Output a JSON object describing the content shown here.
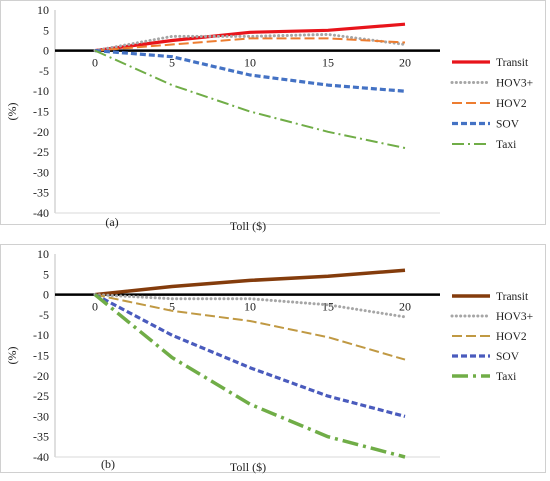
{
  "chart_data": [
    {
      "type": "line",
      "panel_label": "(a)",
      "xlabel": "Toll ($)",
      "ylabel": "(%)",
      "ylim": [
        -40,
        10
      ],
      "xlim": [
        0,
        20
      ],
      "y_ticks": [
        10,
        5,
        0,
        -5,
        -10,
        -15,
        -20,
        -25,
        -30,
        -35,
        -40
      ],
      "x_ticks": [
        0,
        5,
        10,
        15,
        20
      ],
      "grid": false,
      "legend_position": "right",
      "series": [
        {
          "name": "Transit",
          "color": "#e8141b",
          "dash": "solid",
          "x": [
            0,
            5,
            10,
            15,
            20
          ],
          "y": [
            0,
            2.5,
            4.5,
            5.0,
            6.5
          ]
        },
        {
          "name": "HOV3+",
          "color": "#a6a6a6",
          "dash": "dotted",
          "x": [
            0,
            5,
            10,
            15,
            20
          ],
          "y": [
            0,
            3.5,
            3.5,
            4.0,
            1.5
          ]
        },
        {
          "name": "HOV2",
          "color": "#ed7d31",
          "dash": "dashed",
          "x": [
            0,
            5,
            10,
            15,
            20
          ],
          "y": [
            0,
            1.5,
            3.0,
            3.0,
            2.0
          ]
        },
        {
          "name": "SOV",
          "color": "#4472c4",
          "dash": "heavy-dash",
          "x": [
            0,
            5,
            10,
            15,
            20
          ],
          "y": [
            0,
            -1.5,
            -6.0,
            -8.5,
            -10.0
          ]
        },
        {
          "name": "Taxi",
          "color": "#70ad47",
          "dash": "dash-dot",
          "x": [
            0,
            5,
            10,
            15,
            20
          ],
          "y": [
            0,
            -8.5,
            -15.0,
            -20.0,
            -24.0
          ]
        }
      ]
    },
    {
      "type": "line",
      "panel_label": "(b)",
      "xlabel": "Toll ($)",
      "ylabel": "(%)",
      "ylim": [
        -40,
        10
      ],
      "xlim": [
        0,
        20
      ],
      "y_ticks": [
        10,
        5,
        0,
        -5,
        -10,
        -15,
        -20,
        -25,
        -30,
        -35,
        -40
      ],
      "x_ticks": [
        0,
        5,
        10,
        15,
        20
      ],
      "grid": false,
      "legend_position": "right",
      "series": [
        {
          "name": "Transit",
          "color": "#843c0c",
          "dash": "solid",
          "x": [
            0,
            5,
            10,
            15,
            20
          ],
          "y": [
            0,
            2.0,
            3.5,
            4.5,
            6.0
          ]
        },
        {
          "name": "HOV3+",
          "color": "#a6a6a6",
          "dash": "dotted",
          "x": [
            0,
            5,
            10,
            15,
            20
          ],
          "y": [
            0,
            -1.0,
            -1.0,
            -2.5,
            -5.5
          ]
        },
        {
          "name": "HOV2",
          "color": "#c09943",
          "dash": "dashed",
          "x": [
            0,
            5,
            10,
            15,
            20
          ],
          "y": [
            0,
            -4.0,
            -6.5,
            -10.5,
            -16.0
          ]
        },
        {
          "name": "SOV",
          "color": "#4a5bbd",
          "dash": "heavy-dash",
          "x": [
            0,
            5,
            10,
            15,
            20
          ],
          "y": [
            0,
            -10.0,
            -18.0,
            -25.0,
            -30.0
          ]
        },
        {
          "name": "Taxi",
          "color": "#70ad47",
          "dash": "dash-dot",
          "x": [
            0,
            5,
            10,
            15,
            20
          ],
          "y": [
            0,
            -15.5,
            -27.0,
            -35.0,
            -40.0
          ]
        }
      ]
    }
  ]
}
